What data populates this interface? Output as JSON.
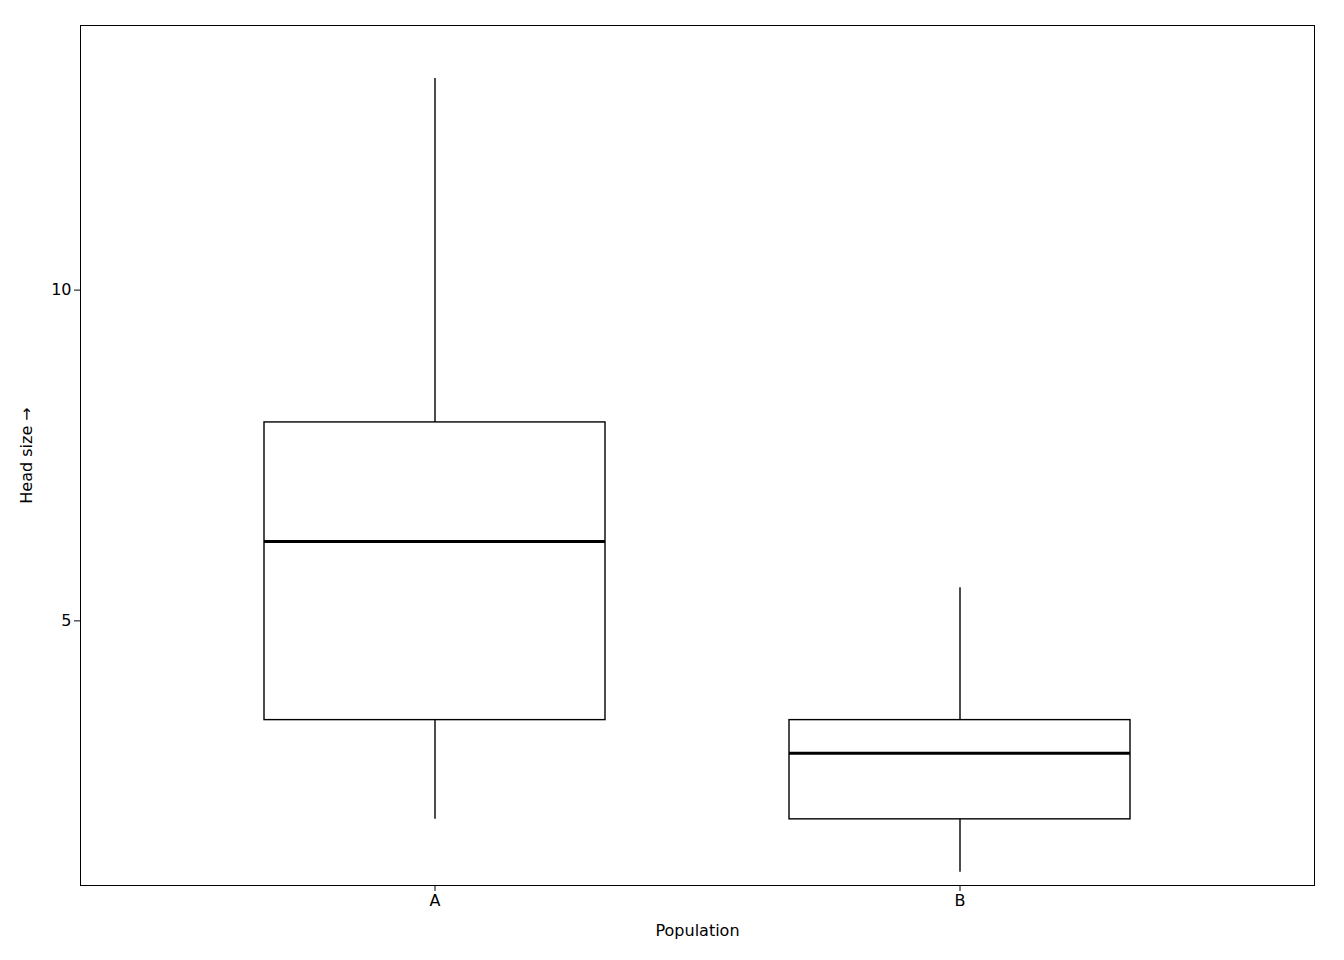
{
  "chart_data": {
    "type": "box",
    "title": "",
    "xlabel": "Population",
    "ylabel": "Head size",
    "categories": [
      "A",
      "B"
    ],
    "whisker_low": [
      2.0,
      1.2
    ],
    "q1": [
      3.5,
      2.0
    ],
    "median": [
      6.2,
      3.0
    ],
    "q3": [
      8.0,
      3.5
    ],
    "whisker_high": [
      13.2,
      5.5
    ],
    "color": "#000000",
    "ylim": [
      1.0,
      14.0
    ],
    "yticks": [
      5,
      10
    ],
    "grid": false
  }
}
